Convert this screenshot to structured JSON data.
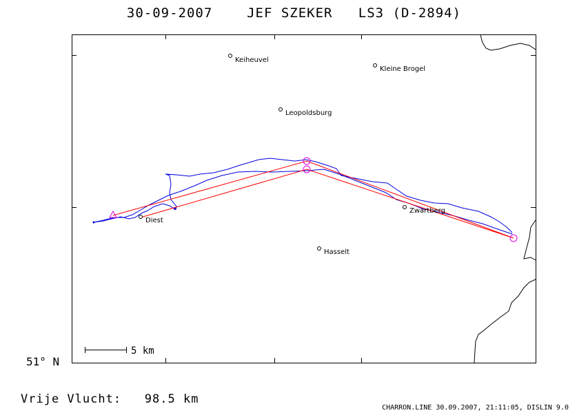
{
  "header": {
    "date": "30-09-2007",
    "pilot": "JEF SZEKER",
    "glider": "LS3 (D-2894)"
  },
  "map": {
    "latitude_label": "51° N",
    "scale_label": "5 km",
    "places": [
      {
        "name": "Keiheuvel"
      },
      {
        "name": "Kleine Brogel"
      },
      {
        "name": "Leopoldsburg"
      },
      {
        "name": "Diest"
      },
      {
        "name": "Zwartberg"
      },
      {
        "name": "Hasselt"
      }
    ],
    "colors": {
      "track": "#0000dd",
      "task": "#ff0000",
      "turnpoint": "#dd00dd",
      "border": "#000000"
    }
  },
  "footer": {
    "flight_label": "Vrije Vlucht:",
    "flight_distance": "98.5 km",
    "credits": "CHARRON.LINE 30.09.2007, 21:11:05, DISLIN 9.0"
  }
}
